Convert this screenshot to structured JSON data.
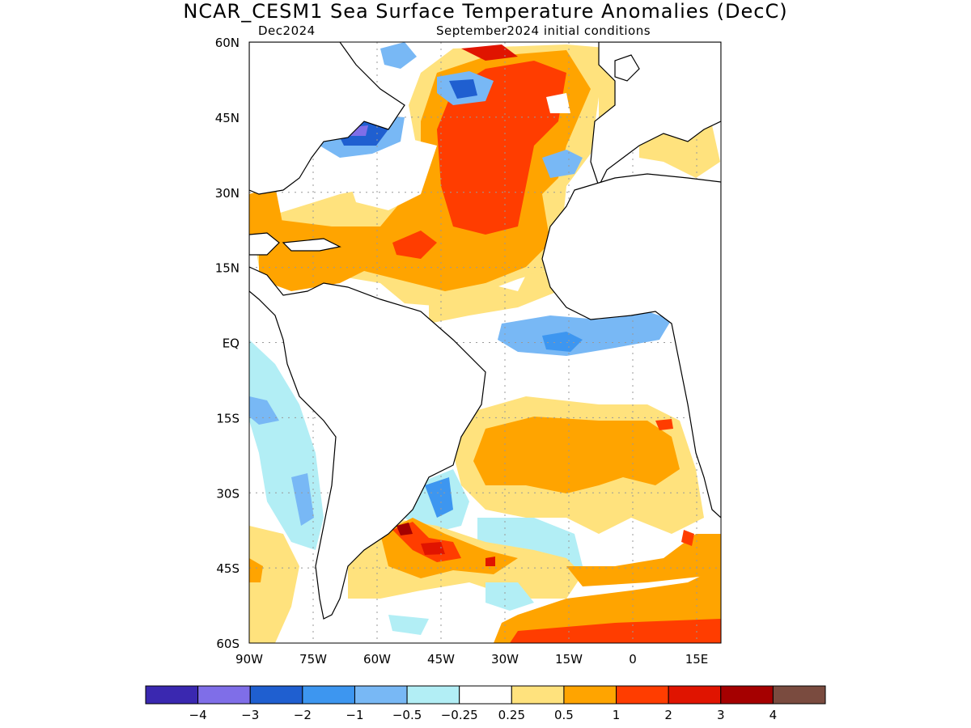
{
  "title": "NCAR_CESM1 Sea Surface Temperature Anomalies (DecC)",
  "subtitle_left": "Dec2024",
  "subtitle_right": "September2024 initial conditions",
  "lat_labels": [
    "60N",
    "45N",
    "30N",
    "15N",
    "EQ",
    "15S",
    "30S",
    "45S",
    "60S"
  ],
  "lon_labels": [
    "90W",
    "75W",
    "60W",
    "45W",
    "30W",
    "15W",
    "0",
    "15E"
  ],
  "colorbar": {
    "colors": [
      "#3a28b0",
      "#7f6ee8",
      "#1f5fd0",
      "#3d96f0",
      "#78b8f5",
      "#b2eef5",
      "#ffffff",
      "#ffe27d",
      "#ffa400",
      "#ff3d00",
      "#e01400",
      "#a50000",
      "#7a4b3f"
    ],
    "labels": [
      "−4",
      "−3",
      "−2",
      "−1",
      "−0.5",
      "−0.25",
      "0.25",
      "0.5",
      "1",
      "2",
      "3",
      "4"
    ]
  },
  "colors": {
    "land_outline": "#000000",
    "grid": "#999999"
  }
}
